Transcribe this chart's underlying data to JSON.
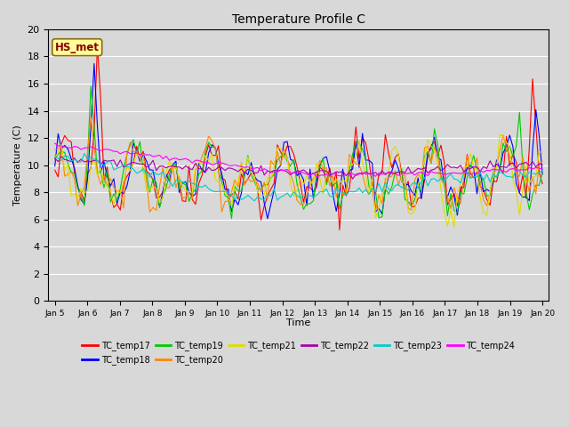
{
  "title": "Temperature Profile C",
  "xlabel": "Time",
  "ylabel": "Temperature (C)",
  "ylim": [
    0,
    20
  ],
  "annotation": "HS_met",
  "annotation_color": "#8B0000",
  "annotation_bg": "#FFFF99",
  "bg_color": "#D8D8D8",
  "series_colors": {
    "TC_temp17": "#FF0000",
    "TC_temp18": "#0000FF",
    "TC_temp19": "#00CC00",
    "TC_temp20": "#FF8800",
    "TC_temp21": "#DDDD00",
    "TC_temp22": "#AA00AA",
    "TC_temp23": "#00CCCC",
    "TC_temp24": "#FF00FF"
  },
  "x_ticks": [
    "Jan 5",
    "Jan 6",
    "Jan 7",
    "Jan 8",
    "Jan 9",
    "Jan 10",
    "Jan 11",
    "Jan 12",
    "Jan 13",
    "Jan 14",
    "Jan 15",
    "Jan 16",
    "Jan 17",
    "Jan 18",
    "Jan 19",
    "Jan 20"
  ],
  "grid_color": "#FFFFFF",
  "linewidth": 0.8
}
